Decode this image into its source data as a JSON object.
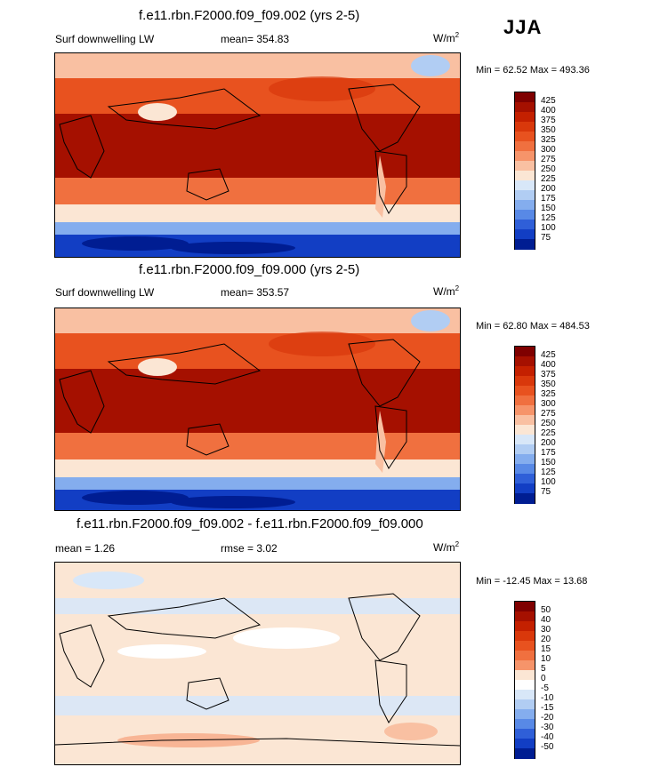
{
  "season": "JJA",
  "panels": [
    {
      "id": "test",
      "title": "f.e11.rbn.F2000.f09_f09.002 (yrs 2-5)",
      "left_label": "Surf downwelling LW",
      "center_label": "mean= 354.83",
      "units": "W/m",
      "units_sup": "2",
      "minmax": "Min =  62.52 Max = 493.36",
      "colorbar": {
        "labels": [
          "425",
          "400",
          "375",
          "350",
          "325",
          "300",
          "275",
          "250",
          "225",
          "200",
          "175",
          "150",
          "125",
          "100",
          "75"
        ],
        "colors": [
          "#7f0000",
          "#a51000",
          "#c42000",
          "#d9380b",
          "#e8521f",
          "#f0703f",
          "#f6946a",
          "#f9c0a2",
          "#fbe6d4",
          "#d8e7f8",
          "#b1cdf3",
          "#84adee",
          "#5889e6",
          "#2f5fd8",
          "#123ec4",
          "#001d92"
        ]
      }
    },
    {
      "id": "control",
      "title": "f.e11.rbn.F2000.f09_f09.000 (yrs 2-5)",
      "left_label": "Surf downwelling LW",
      "center_label": "mean= 353.57",
      "units": "W/m",
      "units_sup": "2",
      "minmax": "Min =  62.80 Max = 484.53",
      "colorbar": {
        "labels": [
          "425",
          "400",
          "375",
          "350",
          "325",
          "300",
          "275",
          "250",
          "225",
          "200",
          "175",
          "150",
          "125",
          "100",
          "75"
        ],
        "colors": [
          "#7f0000",
          "#a51000",
          "#c42000",
          "#d9380b",
          "#e8521f",
          "#f0703f",
          "#f6946a",
          "#f9c0a2",
          "#fbe6d4",
          "#d8e7f8",
          "#b1cdf3",
          "#84adee",
          "#5889e6",
          "#2f5fd8",
          "#123ec4",
          "#001d92"
        ]
      }
    },
    {
      "id": "diff",
      "title": "f.e11.rbn.F2000.f09_f09.002 - f.e11.rbn.F2000.f09_f09.000",
      "left_label": "mean =   1.26",
      "center_label": "rmse =   3.02",
      "units": "W/m",
      "units_sup": "2",
      "minmax": "Min = -12.45 Max =  13.68",
      "colorbar": {
        "labels": [
          "50",
          "40",
          "30",
          "20",
          "15",
          "10",
          "5",
          "0",
          "-5",
          "-10",
          "-15",
          "-20",
          "-30",
          "-40",
          "-50"
        ],
        "colors": [
          "#7f0000",
          "#a51000",
          "#c42000",
          "#d9380b",
          "#e8521f",
          "#f0703f",
          "#f6946a",
          "#fbe6d4",
          "#ffffff",
          "#d8e7f8",
          "#b1cdf3",
          "#84adee",
          "#5889e6",
          "#2f5fd8",
          "#123ec4",
          "#001d92"
        ]
      }
    }
  ]
}
